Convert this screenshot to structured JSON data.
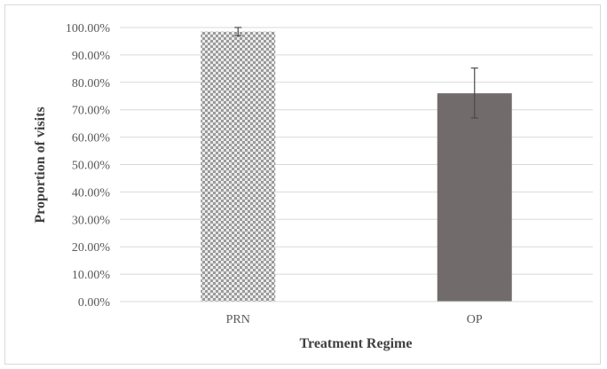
{
  "chart_data": {
    "type": "bar",
    "title": "",
    "xlabel": "Treatment Regime",
    "ylabel": "Proportion of visits",
    "categories": [
      "PRN",
      "OP"
    ],
    "values": [
      98.5,
      76.0
    ],
    "error_low": [
      97.0,
      67.0
    ],
    "error_high": [
      100.0,
      85.2
    ],
    "ylim": [
      0,
      100
    ],
    "y_ticks": [
      "0.00%",
      "10.00%",
      "20.00%",
      "30.00%",
      "40.00%",
      "50.00%",
      "60.00%",
      "70.00%",
      "80.00%",
      "90.00%",
      "100.00%"
    ],
    "grid": true,
    "legend": "none",
    "bar_styles": [
      "dotted-pattern",
      "solid"
    ],
    "colors": {
      "bar_op": "#716b6b",
      "bar_prn_light": "#ebebeb",
      "bar_prn_dot": "#9a9a9a",
      "grid": "#d9d9d9",
      "error_bar": "#4a4a4a"
    }
  }
}
